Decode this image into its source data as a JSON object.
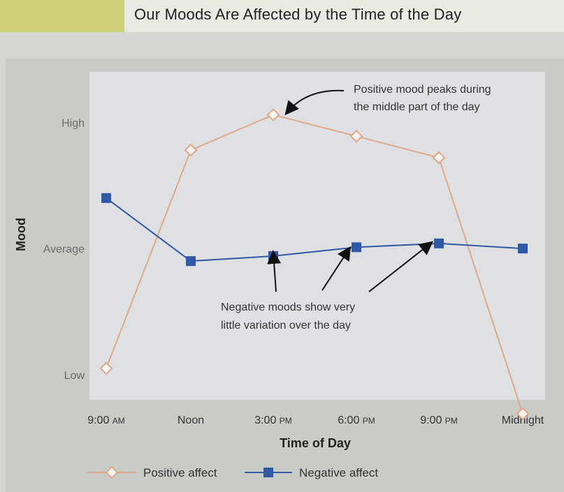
{
  "title": "Our Moods Are Affected by the Time of the Day",
  "colors": {
    "positive": "#e0a785",
    "negative": "#2f58a5",
    "plot_bg": "#dfe0e3",
    "panel_bg": "#c9cbc6",
    "title_accent": "#cfd07a"
  },
  "chart_data": {
    "type": "line",
    "xlabel": "Time of Day",
    "ylabel": "Mood",
    "categories": [
      "9:00 AM",
      "Noon",
      "3:00 PM",
      "6:00 PM",
      "9:00 PM",
      "Midnight"
    ],
    "y_tick_labels": [
      "Low",
      "Average",
      "High"
    ],
    "ylim": [
      0.8,
      3.4
    ],
    "series": [
      {
        "name": "Positive affect",
        "marker": "diamond",
        "values": [
          1.05,
          2.78,
          3.06,
          2.89,
          2.72,
          0.69
        ]
      },
      {
        "name": "Negative affect",
        "marker": "square",
        "values": [
          2.4,
          1.9,
          1.94,
          2.01,
          2.04,
          2.0
        ]
      }
    ],
    "annotations": [
      {
        "line1": "Positive mood peaks during",
        "line2": "the middle part of the day"
      },
      {
        "line1": "Negative moods show very",
        "line2": "little variation over the day"
      }
    ]
  }
}
